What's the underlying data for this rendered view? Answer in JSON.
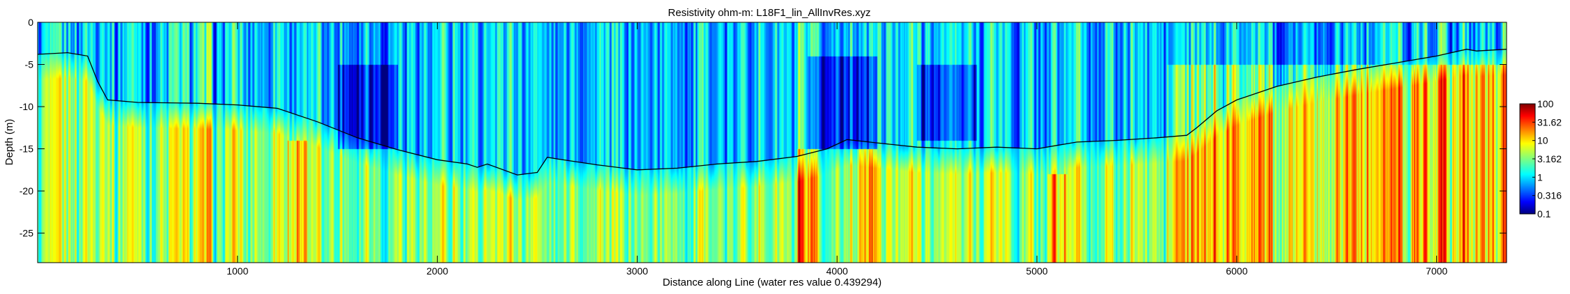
{
  "chart_data": {
    "type": "heatmap",
    "title": "Resistivity ohm-m: L18F1_lin_AllInvRes.xyz",
    "xlabel": "Distance along Line (water res value 0.439294)",
    "ylabel": "Depth (m)",
    "xlim": [
      0,
      7350
    ],
    "ylim": [
      -28.5,
      0
    ],
    "x_ticks": [
      1000,
      2000,
      3000,
      4000,
      5000,
      6000,
      7000
    ],
    "y_ticks": [
      0,
      -5,
      -10,
      -15,
      -20,
      -25
    ],
    "grid": false,
    "colormap": "jet",
    "color_scale": "log",
    "colorbar": {
      "range": [
        0.1,
        100
      ],
      "ticks": [
        100,
        31.62,
        10,
        3.162,
        1,
        0.316,
        0.1
      ],
      "tick_labels": [
        "100",
        "31.62",
        "10",
        "3.162",
        "1",
        "0.316",
        "0.1"
      ],
      "placement": "right"
    },
    "boundary_line": {
      "color": "#000000",
      "x": [
        0,
        150,
        250,
        300,
        350,
        500,
        800,
        1000,
        1200,
        1400,
        1600,
        1800,
        2000,
        2150,
        2200,
        2250,
        2400,
        2500,
        2550,
        2600,
        2800,
        3000,
        3200,
        3400,
        3600,
        3800,
        3950,
        4050,
        4200,
        4400,
        4600,
        4800,
        5000,
        5100,
        5200,
        5400,
        5600,
        5750,
        5800,
        5900,
        6000,
        6200,
        6400,
        6600,
        6800,
        7000,
        7150,
        7200,
        7350
      ],
      "y": [
        -3.8,
        -3.6,
        -4.0,
        -7.0,
        -9.2,
        -9.5,
        -9.6,
        -9.8,
        -10.2,
        -11.8,
        -13.7,
        -15.1,
        -16.3,
        -16.8,
        -17.2,
        -16.8,
        -18.1,
        -17.8,
        -16.0,
        -16.2,
        -16.9,
        -17.5,
        -17.3,
        -16.8,
        -16.5,
        -15.9,
        -15.0,
        -13.9,
        -14.3,
        -14.8,
        -15.0,
        -14.8,
        -15.0,
        -14.6,
        -14.2,
        -14.0,
        -13.7,
        -13.4,
        -12.5,
        -10.5,
        -9.2,
        -7.6,
        -6.5,
        -5.6,
        -4.8,
        -4.0,
        -3.2,
        -3.4,
        -3.2
      ]
    },
    "field_model": {
      "upper_band_log_res": [
        -0.3,
        0.3
      ],
      "lower_band_log_res": [
        0.4,
        1.4
      ],
      "high_resistivity_zones": [
        {
          "x_range": [
            3800,
            3900
          ],
          "depth_range": [
            -28.5,
            -15
          ]
        },
        {
          "x_range": [
            4100,
            4200
          ],
          "depth_range": [
            -28.5,
            -15
          ]
        },
        {
          "x_range": [
            5650,
            7350
          ],
          "depth_range": [
            -28.5,
            -5
          ]
        },
        {
          "x_range": [
            5050,
            5150
          ],
          "depth_range": [
            -28.5,
            -18
          ]
        },
        {
          "x_range": [
            1250,
            1350
          ],
          "depth_range": [
            -28.5,
            -14
          ]
        }
      ],
      "low_resistivity_zones": [
        {
          "x_range": [
            1500,
            1800
          ],
          "depth_range": [
            -15,
            -5
          ]
        },
        {
          "x_range": [
            3850,
            4200
          ],
          "depth_range": [
            -15,
            -4
          ]
        },
        {
          "x_range": [
            4400,
            4700
          ],
          "depth_range": [
            -14,
            -5
          ]
        }
      ]
    }
  }
}
